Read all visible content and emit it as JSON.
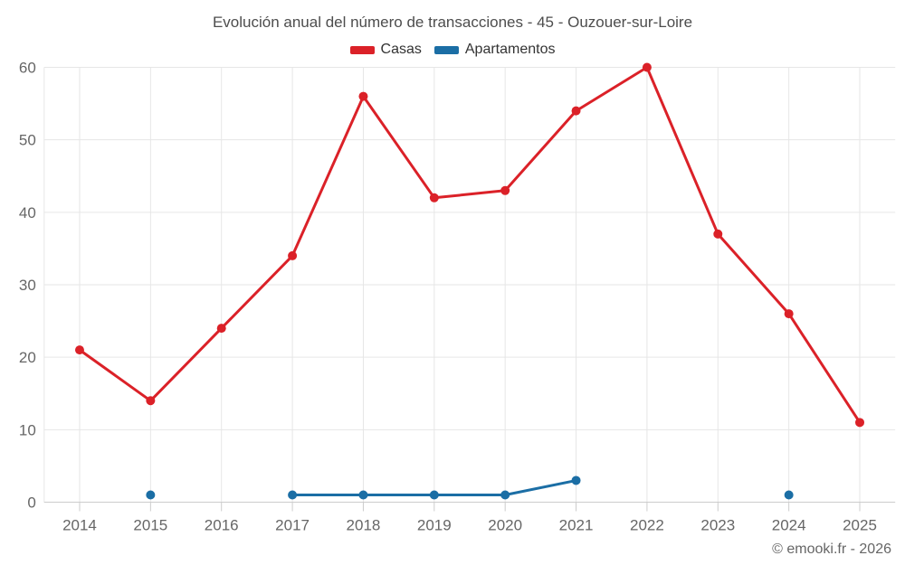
{
  "chart_data": {
    "type": "line",
    "title": "Evolución anual del número de transacciones - 45 - Ouzouer-sur-Loire",
    "categories": [
      "2014",
      "2015",
      "2016",
      "2017",
      "2018",
      "2019",
      "2020",
      "2021",
      "2022",
      "2023",
      "2024",
      "2025"
    ],
    "series": [
      {
        "name": "Casas",
        "color": "#db2128",
        "values": [
          21,
          14,
          24,
          34,
          56,
          42,
          43,
          54,
          60,
          37,
          26,
          11
        ]
      },
      {
        "name": "Apartamentos",
        "color": "#1b6ea5",
        "values": [
          null,
          1,
          null,
          1,
          1,
          1,
          1,
          3,
          null,
          null,
          1,
          null
        ]
      }
    ],
    "xlabel": "",
    "ylabel": "",
    "ylim": [
      0,
      60
    ],
    "yticks": [
      0,
      10,
      20,
      30,
      40,
      50,
      60
    ],
    "grid": true,
    "legend_position": "top"
  },
  "footer": {
    "copyright": "© emooki.fr - 2026"
  },
  "colors": {
    "grid": "#e6e6e6",
    "axis": "#cccccc",
    "tick_label": "#666666",
    "title_text": "#4d4d4d"
  }
}
